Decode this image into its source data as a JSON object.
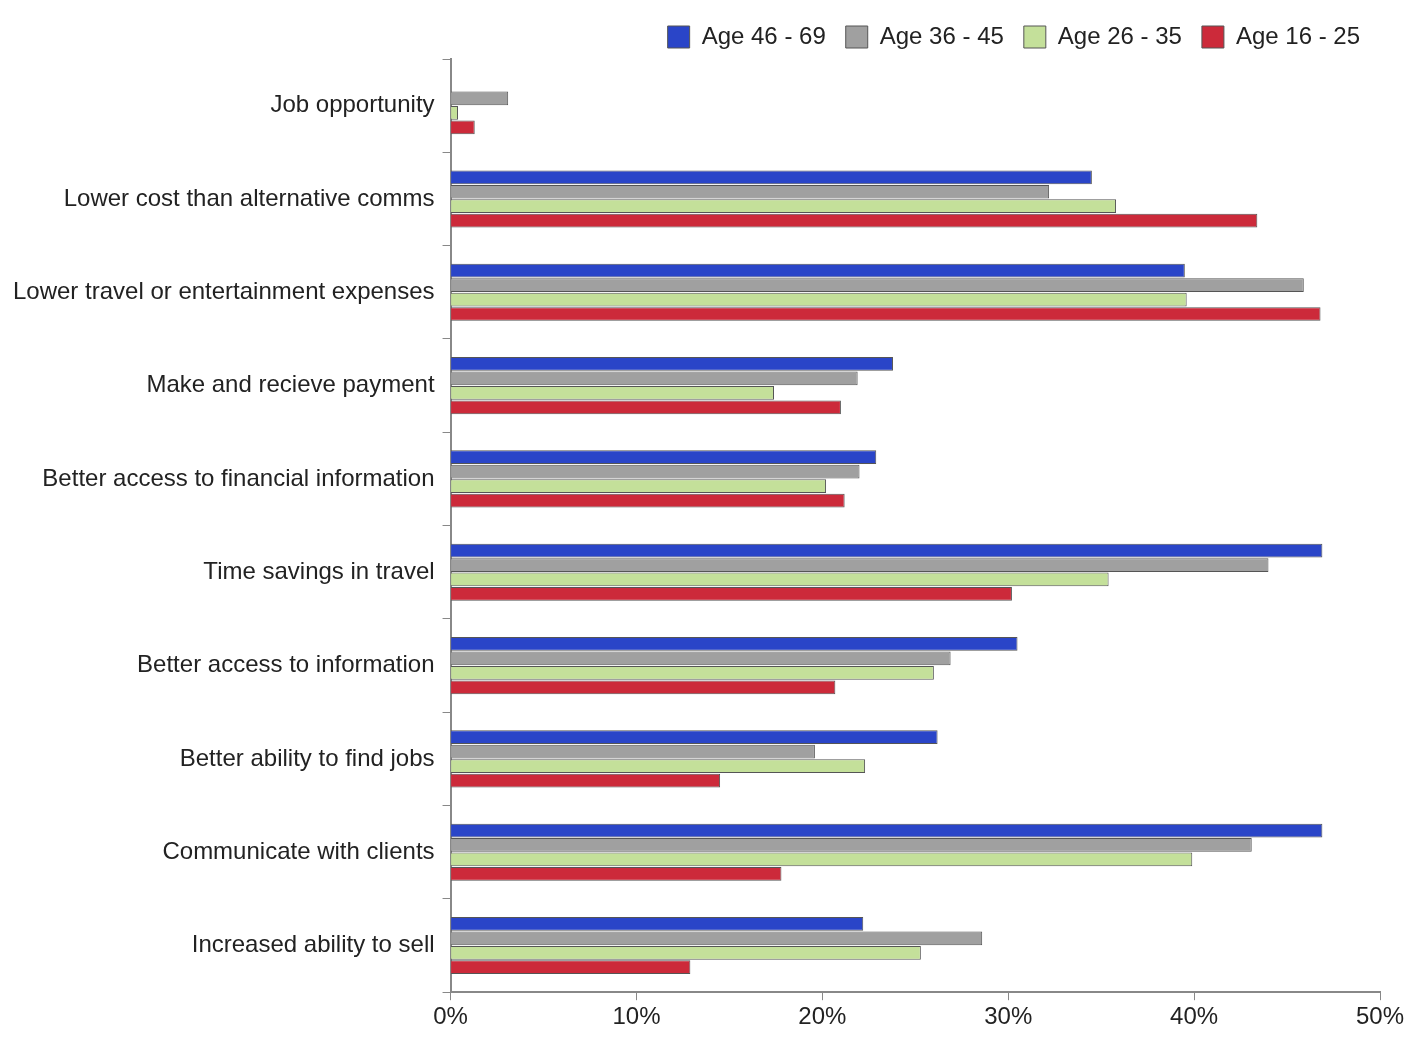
{
  "chart_data": {
    "type": "bar",
    "orientation": "horizontal",
    "categories": [
      "Job opportunity",
      "Lower cost than alternative comms",
      "Lower travel or entertainment expenses",
      "Make and recieve payment",
      "Better access to financial information",
      "Time savings in travel",
      "Better access to information",
      "Better ability to find jobs",
      "Communicate with clients",
      "Increased ability to sell"
    ],
    "series": [
      {
        "name": "Age 46 - 69",
        "color": "#2a45c8",
        "values": [
          0,
          34.5,
          39.5,
          23.8,
          22.9,
          46.9,
          30.5,
          26.2,
          46.9,
          22.2
        ]
      },
      {
        "name": "Age 36 - 45",
        "color": "#a0a0a0",
        "values": [
          3.1,
          32.2,
          45.9,
          21.9,
          22.0,
          44.0,
          26.9,
          19.6,
          43.1,
          28.6
        ]
      },
      {
        "name": "Age 26 - 35",
        "color": "#c4e09a",
        "values": [
          0.4,
          35.8,
          39.6,
          17.4,
          20.2,
          35.4,
          26.0,
          22.3,
          39.9,
          25.3
        ]
      },
      {
        "name": "Age 16 - 25",
        "color": "#cc2a3a",
        "values": [
          1.3,
          43.4,
          46.8,
          21.0,
          21.2,
          30.2,
          20.7,
          14.5,
          17.8,
          12.9
        ]
      }
    ],
    "xlim": [
      0,
      50
    ],
    "xticks": [
      {
        "value": 0,
        "label": "0%"
      },
      {
        "value": 10,
        "label": "10%"
      },
      {
        "value": 20,
        "label": "20%"
      },
      {
        "value": 30,
        "label": "30%"
      },
      {
        "value": 40,
        "label": "40%"
      },
      {
        "value": 50,
        "label": "50%"
      }
    ],
    "grid": false,
    "legend": "top right"
  }
}
